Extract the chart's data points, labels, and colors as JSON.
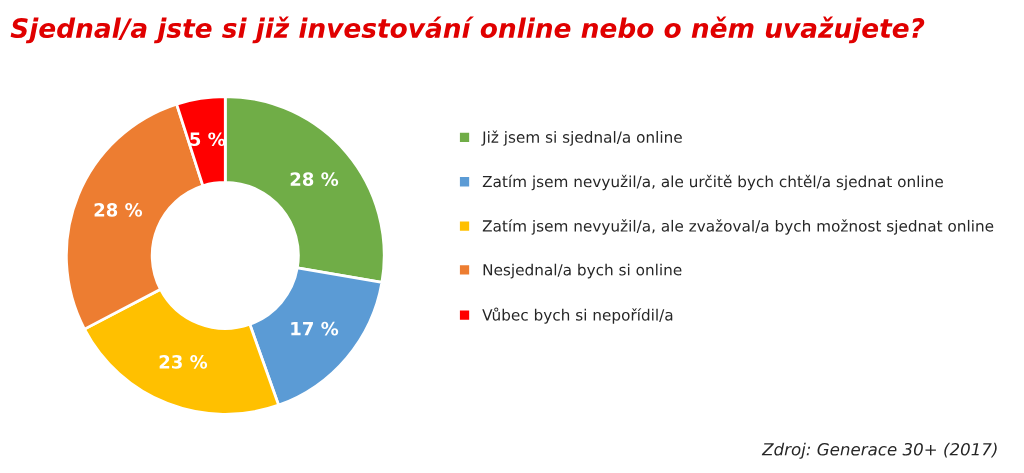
{
  "chart_data": {
    "type": "donut",
    "title": "Sjednal/a jste si již investování online nebo o něm uvažujete?",
    "categories": [
      "Již jsem si sjednal/a online",
      "Zatím jsem nevyužil/a, ale určitě bych chtěl/a sjednat online",
      "Zatím jsem nevyužil/a, ale zvažoval/a bych možnost sjednat online",
      "Nesjednal/a bych si online",
      "Vůbec bych si nepořídil/a"
    ],
    "values": [
      28,
      17,
      23,
      28,
      5
    ],
    "colors": [
      "#70ad47",
      "#5b9bd5",
      "#ffc000",
      "#ed7d31",
      "#ff0000"
    ],
    "value_labels": [
      "28 %",
      "17 %",
      "23 %",
      "28 %",
      "5 %"
    ],
    "legend": "right",
    "annotations": [
      "Zdroj: Generace 30+ (2017)"
    ]
  }
}
